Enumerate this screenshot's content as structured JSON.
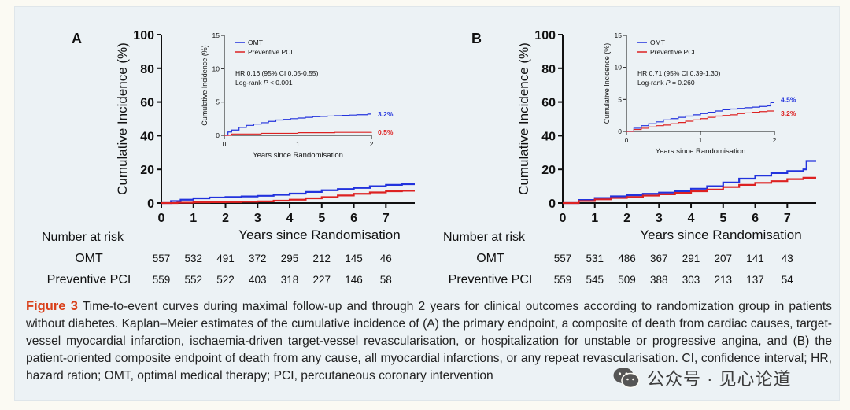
{
  "chart_data": [
    {
      "type": "line",
      "panel_label": "A",
      "xlabel": "Years since Randomisation",
      "ylabel": "Cumulative Incidence (%)",
      "xlim": [
        0,
        7.9
      ],
      "ylim": [
        0,
        100
      ],
      "xticks": [
        "0",
        "1",
        "2",
        "3",
        "4",
        "5",
        "6",
        "7"
      ],
      "yticks": [
        "0",
        "20",
        "40",
        "60",
        "80",
        "100"
      ],
      "series": [
        {
          "name": "OMT",
          "color": "#2233dd",
          "x": [
            0,
            0.3,
            0.6,
            1.0,
            1.5,
            2.0,
            2.5,
            3.0,
            3.5,
            4.0,
            4.5,
            5.0,
            5.5,
            6.0,
            6.5,
            7.0,
            7.5,
            7.9
          ],
          "y": [
            0,
            1.2,
            2.0,
            2.8,
            3.3,
            3.6,
            3.9,
            4.3,
            4.9,
            5.6,
            6.6,
            7.6,
            8.3,
            9.0,
            10.0,
            10.8,
            11.2,
            11.2
          ]
        },
        {
          "name": "Preventive PCI",
          "color": "#dd2222",
          "x": [
            0,
            0.5,
            1.0,
            1.5,
            2.0,
            2.5,
            3.0,
            3.5,
            4.0,
            4.5,
            5.0,
            5.5,
            6.0,
            6.5,
            7.0,
            7.5,
            7.9
          ],
          "y": [
            0,
            0.2,
            0.4,
            0.5,
            0.6,
            0.8,
            1.0,
            1.4,
            2.0,
            2.8,
            3.5,
            4.5,
            5.5,
            6.3,
            7.0,
            7.3,
            7.3
          ]
        }
      ],
      "inset": {
        "xlabel": "Years since Randomisation",
        "ylabel": "Cumulative Incidence (%)",
        "xlim": [
          0,
          2
        ],
        "ylim": [
          0,
          15
        ],
        "xticks": [
          "0",
          "1",
          "2"
        ],
        "yticks": [
          "0",
          "5",
          "10",
          "15"
        ],
        "legend": [
          "OMT",
          "Preventive  PCI"
        ],
        "stat_line1": "HR 0.16 (95% CI 0.05-0.55)",
        "stat_line2_prefix": "Log-rank ",
        "stat_line2_p": "P",
        "stat_line2_value": " < 0.001",
        "end_labels": [
          "3.2%",
          "0.5%"
        ],
        "series": [
          {
            "name": "OMT",
            "color": "#2233dd",
            "x": [
              0,
              0.05,
              0.1,
              0.2,
              0.3,
              0.4,
              0.5,
              0.6,
              0.7,
              0.8,
              0.9,
              1.0,
              1.1,
              1.2,
              1.3,
              1.4,
              1.5,
              1.6,
              1.7,
              1.8,
              1.9,
              1.95,
              2.0
            ],
            "y": [
              0,
              0.5,
              0.8,
              1.2,
              1.5,
              1.7,
              1.9,
              2.1,
              2.3,
              2.4,
              2.5,
              2.6,
              2.7,
              2.8,
              2.85,
              2.9,
              2.95,
              3.0,
              3.05,
              3.1,
              3.1,
              3.2,
              3.2
            ]
          },
          {
            "name": "Preventive PCI",
            "color": "#dd2222",
            "x": [
              0,
              0.1,
              0.5,
              1.0,
              1.5,
              2.0
            ],
            "y": [
              0,
              0.2,
              0.3,
              0.4,
              0.45,
              0.5
            ]
          }
        ]
      },
      "risk_table": {
        "header": "Number at risk",
        "rows": [
          {
            "label": "OMT",
            "values": [
              "557",
              "532",
              "491",
              "372",
              "295",
              "212",
              "145",
              "46"
            ]
          },
          {
            "label": "Preventive  PCI",
            "values": [
              "559",
              "552",
              "522",
              "403",
              "318",
              "227",
              "146",
              "58"
            ]
          }
        ]
      }
    },
    {
      "type": "line",
      "panel_label": "B",
      "xlabel": "Years since Randomisation",
      "ylabel": "Cumulative Incidence (%)",
      "xlim": [
        0,
        7.9
      ],
      "ylim": [
        0,
        100
      ],
      "xticks": [
        "0",
        "1",
        "2",
        "3",
        "4",
        "5",
        "6",
        "7"
      ],
      "yticks": [
        "0",
        "20",
        "40",
        "60",
        "80",
        "100"
      ],
      "series": [
        {
          "name": "OMT",
          "color": "#2233dd",
          "x": [
            0,
            0.5,
            1.0,
            1.5,
            2.0,
            2.5,
            3.0,
            3.5,
            4.0,
            4.5,
            5.0,
            5.5,
            6.0,
            6.5,
            7.0,
            7.5,
            7.6,
            7.9
          ],
          "y": [
            0,
            1.8,
            3.0,
            4.0,
            4.6,
            5.5,
            6.2,
            7.0,
            8.5,
            10.0,
            12.2,
            14.5,
            16.3,
            17.8,
            19.0,
            20.0,
            25.0,
            25.0
          ]
        },
        {
          "name": "Preventive PCI",
          "color": "#dd2222",
          "x": [
            0,
            0.5,
            1.0,
            1.5,
            2.0,
            2.5,
            3.0,
            3.5,
            4.0,
            4.5,
            5.0,
            5.5,
            6.0,
            6.5,
            7.0,
            7.5,
            7.9
          ],
          "y": [
            0,
            1.2,
            2.2,
            3.0,
            3.6,
            4.4,
            5.2,
            6.0,
            7.0,
            8.0,
            9.5,
            10.8,
            12.0,
            13.0,
            14.2,
            15.0,
            15.0
          ]
        }
      ],
      "inset": {
        "xlabel": "Years since Randomisation",
        "ylabel": "Cumulative Incidence (%)",
        "xlim": [
          0,
          2
        ],
        "ylim": [
          0,
          15
        ],
        "xticks": [
          "0",
          "1",
          "2"
        ],
        "yticks": [
          "0",
          "5",
          "10",
          "15"
        ],
        "legend": [
          "OMT",
          "Preventive  PCI"
        ],
        "stat_line1": "HR 0.71 (95% CI 0.39-1.30)",
        "stat_line2_prefix": "Log-rank ",
        "stat_line2_p": "P",
        "stat_line2_value": " = 0.260",
        "end_labels": [
          "4.5%",
          "3.2%"
        ],
        "series": [
          {
            "name": "OMT",
            "color": "#2233dd",
            "x": [
              0,
              0.1,
              0.2,
              0.3,
              0.4,
              0.5,
              0.6,
              0.7,
              0.8,
              0.9,
              1.0,
              1.1,
              1.2,
              1.3,
              1.4,
              1.5,
              1.6,
              1.7,
              1.8,
              1.9,
              1.95,
              2.0
            ],
            "y": [
              0,
              0.5,
              0.9,
              1.2,
              1.5,
              1.8,
              2.0,
              2.2,
              2.4,
              2.6,
              2.8,
              3.0,
              3.2,
              3.4,
              3.5,
              3.6,
              3.7,
              3.8,
              3.9,
              4.0,
              4.5,
              4.5
            ]
          },
          {
            "name": "Preventive PCI",
            "color": "#dd2222",
            "x": [
              0,
              0.1,
              0.2,
              0.3,
              0.4,
              0.5,
              0.6,
              0.7,
              0.8,
              0.9,
              1.0,
              1.1,
              1.2,
              1.3,
              1.4,
              1.5,
              1.6,
              1.7,
              1.8,
              1.9,
              2.0
            ],
            "y": [
              0,
              0.3,
              0.5,
              0.7,
              0.9,
              1.0,
              1.2,
              1.4,
              1.6,
              1.8,
              2.0,
              2.2,
              2.4,
              2.5,
              2.6,
              2.8,
              2.9,
              3.0,
              3.1,
              3.2,
              3.2
            ]
          }
        ]
      },
      "risk_table": {
        "header": "Number at risk",
        "rows": [
          {
            "label": "OMT",
            "values": [
              "557",
              "531",
              "486",
              "367",
              "291",
              "207",
              "141",
              "43"
            ]
          },
          {
            "label": "Preventive  PCI",
            "values": [
              "559",
              "545",
              "509",
              "388",
              "303",
              "213",
              "137",
              "54"
            ]
          }
        ]
      }
    }
  ],
  "caption": {
    "label": "Figure 3",
    "text": " Time-to-event curves during maximal follow-up and through 2 years for clinical outcomes according to randomization group in patients without diabetes. Kaplan–Meier estimates of the cumulative incidence of (A) the primary endpoint, a composite of death from cardiac causes, target-vessel myocardial infarction, ischaemia-driven target-vessel revascularisation, or hospitalization for unstable or progressive angina, and (B) the patient-oriented composite endpoint of death from any cause, all myocardial infarctions, or any repeat revascularisation. CI, confidence interval; HR, hazard ration; OMT, optimal medical therapy; PCI, percutaneous coronary intervention"
  },
  "watermark": {
    "text": "公众号 · 见心论道",
    "icon": "wechat-icon"
  }
}
